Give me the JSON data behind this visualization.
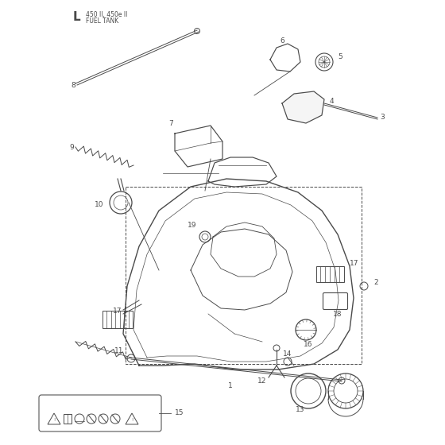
{
  "title": "L",
  "subtitle1": "450 II, 450e II",
  "subtitle2": "FUEL TANK",
  "bg_color": "#ffffff",
  "line_color": "#4a4a4a",
  "fig_width": 5.6,
  "fig_height": 5.6,
  "dpi": 100
}
